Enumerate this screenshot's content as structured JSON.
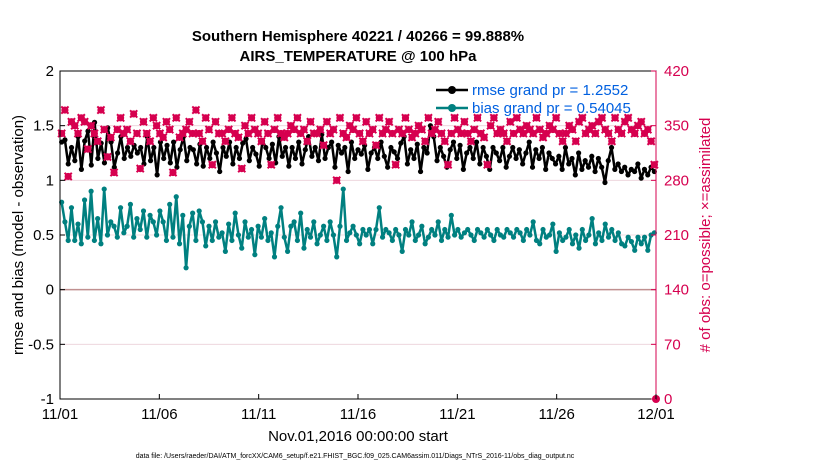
{
  "chart_data": {
    "type": "line",
    "title_line1": "Southern Hemisphere 40221 / 40266 = 99.888%",
    "title_line2": "AIRS_TEMPERATURE @ 100 hPa",
    "xlabel": "Nov.01,2016 00:00:00 start",
    "ylabel": "rmse and bias (model - observation)",
    "ylabel_right": "# of obs: o=possible; ×=assimilated",
    "x_tick_labels": [
      "11/01",
      "11/06",
      "11/11",
      "11/16",
      "11/21",
      "11/26",
      "12/01"
    ],
    "xlim": [
      0,
      30
    ],
    "ylim": [
      -1,
      2
    ],
    "y_ticks": [
      "-1",
      "-0.5",
      "0",
      "0.5",
      "1",
      "1.5",
      "2"
    ],
    "ylim_right": [
      0,
      420
    ],
    "y_ticks_right": [
      "0",
      "70",
      "140",
      "210",
      "280",
      "350",
      "420"
    ],
    "zero_line": 0,
    "grid": "horizontal",
    "legend_position": "top-right",
    "series": [
      {
        "name": "rmse grand pr = 1.2552",
        "color": "#000000",
        "marker": "circle",
        "axis": "left",
        "values": [
          1.35,
          1.37,
          1.15,
          1.3,
          1.18,
          1.4,
          1.1,
          1.36,
          1.45,
          1.14,
          1.53,
          1.2,
          1.34,
          1.16,
          1.48,
          1.35,
          1.12,
          1.25,
          1.4,
          1.2,
          1.3,
          1.22,
          1.32,
          1.25,
          1.3,
          1.15,
          1.4,
          1.18,
          1.3,
          1.05,
          1.35,
          1.2,
          1.32,
          1.16,
          1.35,
          1.12,
          1.28,
          1.4,
          1.18,
          1.3,
          1.28,
          1.15,
          1.33,
          1.13,
          1.3,
          1.2,
          1.35,
          1.25,
          1.08,
          1.3,
          1.22,
          1.35,
          1.15,
          1.3,
          1.2,
          1.34,
          1.38,
          1.18,
          1.3,
          1.24,
          1.13,
          1.36,
          1.3,
          1.2,
          1.33,
          1.16,
          1.4,
          1.22,
          1.3,
          1.13,
          1.3,
          1.2,
          1.35,
          1.15,
          1.28,
          1.4,
          1.22,
          1.3,
          1.18,
          1.42,
          1.2,
          1.3,
          1.35,
          1.12,
          1.32,
          1.25,
          1.3,
          1.08,
          1.35,
          1.2,
          1.28,
          1.24,
          1.32,
          1.1,
          1.25,
          1.3,
          1.2,
          1.35,
          1.22,
          1.12,
          1.3,
          1.26,
          1.2,
          1.34,
          1.4,
          1.15,
          1.28,
          1.2,
          1.33,
          1.08,
          1.3,
          1.25,
          1.5,
          1.4,
          1.18,
          1.3,
          1.22,
          1.12,
          1.28,
          1.35,
          1.2,
          1.32,
          1.1,
          1.25,
          1.3,
          1.2,
          1.35,
          1.15,
          1.3,
          1.22,
          1.1,
          1.3,
          1.25,
          1.18,
          1.3,
          1.12,
          1.22,
          1.3,
          1.2,
          1.28,
          1.15,
          1.25,
          1.35,
          1.12,
          1.28,
          1.2,
          1.3,
          1.1,
          1.25,
          1.2,
          1.15,
          1.22,
          1.1,
          1.3,
          1.15,
          1.2,
          1.05,
          1.25,
          1.1,
          1.18,
          1.12,
          1.22,
          1.08,
          1.2,
          1.12,
          0.98,
          1.18,
          1.3,
          1.1,
          1.15,
          1.08,
          1.12,
          1.05,
          1.1,
          1.08,
          1.15,
          1.02,
          1.1,
          1.05,
          1.12,
          1.08
        ]
      },
      {
        "name": "bias grand pr = 0.54045",
        "color": "#008080",
        "marker": "circle",
        "axis": "left",
        "values": [
          0.8,
          0.62,
          0.45,
          0.75,
          0.45,
          0.6,
          0.42,
          0.82,
          0.48,
          0.9,
          0.45,
          0.65,
          0.42,
          0.92,
          0.5,
          0.62,
          0.58,
          0.48,
          0.75,
          0.52,
          0.58,
          0.78,
          0.48,
          0.65,
          0.55,
          0.72,
          0.48,
          0.68,
          0.62,
          0.5,
          0.72,
          0.62,
          0.45,
          0.78,
          0.48,
          0.85,
          0.42,
          0.68,
          0.2,
          0.58,
          0.7,
          0.45,
          0.72,
          0.62,
          0.4,
          0.58,
          0.45,
          0.62,
          0.48,
          0.52,
          0.35,
          0.6,
          0.45,
          0.7,
          0.5,
          0.38,
          0.62,
          0.48,
          0.55,
          0.32,
          0.58,
          0.48,
          0.65,
          0.45,
          0.52,
          0.3,
          0.58,
          0.75,
          0.48,
          0.35,
          0.58,
          0.62,
          0.45,
          0.7,
          0.38,
          0.55,
          0.48,
          0.62,
          0.42,
          0.5,
          0.58,
          0.45,
          0.62,
          0.5,
          0.3,
          0.58,
          0.92,
          0.45,
          0.52,
          0.58,
          0.5,
          0.42,
          0.55,
          0.5,
          0.55,
          0.42,
          0.55,
          0.75,
          0.48,
          0.55,
          0.52,
          0.45,
          0.55,
          0.5,
          0.35,
          0.55,
          0.5,
          0.62,
          0.45,
          0.5,
          0.58,
          0.42,
          0.48,
          0.55,
          0.5,
          0.62,
          0.45,
          0.55,
          0.48,
          0.68,
          0.5,
          0.55,
          0.48,
          0.52,
          0.55,
          0.5,
          0.45,
          0.55,
          0.52,
          0.48,
          0.55,
          0.5,
          0.45,
          0.55,
          0.5,
          0.48,
          0.55,
          0.52,
          0.48,
          0.55,
          0.52,
          0.45,
          0.55,
          0.5,
          0.62,
          0.45,
          0.42,
          0.55,
          0.48,
          0.5,
          0.6,
          0.35,
          0.52,
          0.45,
          0.48,
          0.55,
          0.42,
          0.5,
          0.38,
          0.55,
          0.45,
          0.5,
          0.65,
          0.42,
          0.52,
          0.45,
          0.6,
          0.48,
          0.55,
          0.45,
          0.52,
          0.42,
          0.4,
          0.48,
          0.44,
          0.36,
          0.48,
          0.42,
          0.48,
          0.36,
          0.5,
          0.52
        ]
      },
      {
        "name": "obs possible",
        "color": "#d6004f",
        "marker": "circle",
        "axis": "right",
        "values": [
          340,
          370,
          285,
          355,
          350,
          340,
          360,
          355,
          320,
          350,
          340,
          330,
          370,
          345,
          310,
          335,
          290,
          345,
          360,
          340,
          345,
          330,
          365,
          340,
          295,
          355,
          340,
          330,
          360,
          350,
          340,
          335,
          355,
          345,
          290,
          360,
          335,
          340,
          345,
          355,
          340,
          370,
          340,
          330,
          360,
          345,
          300,
          355,
          340,
          340,
          330,
          345,
          360,
          340,
          335,
          295,
          350,
          340,
          360,
          345,
          340,
          330,
          355,
          340,
          300,
          345,
          360,
          340,
          335,
          340,
          350,
          345,
          360,
          340,
          345,
          330,
          355,
          340,
          340,
          345,
          325,
          355,
          340,
          345,
          280,
          360,
          340,
          335,
          350,
          345,
          360,
          340,
          330,
          355,
          340,
          345,
          325,
          360,
          340,
          345,
          355,
          340,
          300,
          345,
          340,
          360,
          345,
          335,
          340,
          350,
          345,
          330,
          360,
          340,
          345,
          355,
          340,
          330,
          300,
          340,
          360,
          345,
          340,
          355,
          340,
          330,
          345,
          360,
          340,
          335,
          300,
          350,
          360,
          340,
          345,
          340,
          330,
          355,
          340,
          360,
          345,
          340,
          350,
          345,
          340,
          360,
          345,
          335,
          340,
          350,
          345,
          360,
          340,
          330,
          340,
          350,
          345,
          330,
          355,
          360,
          340,
          345,
          350,
          340,
          355,
          360,
          345,
          340,
          330,
          360,
          345,
          340,
          355,
          360,
          345,
          340,
          350,
          355,
          340,
          345,
          330,
          300
        ]
      },
      {
        "name": "obs assimilated",
        "color": "#d6004f",
        "marker": "x",
        "axis": "right",
        "values": [
          340,
          370,
          285,
          355,
          350,
          340,
          360,
          355,
          320,
          350,
          340,
          330,
          370,
          345,
          310,
          335,
          290,
          345,
          360,
          340,
          345,
          330,
          365,
          340,
          295,
          355,
          340,
          330,
          360,
          350,
          340,
          335,
          355,
          345,
          290,
          360,
          335,
          340,
          345,
          355,
          340,
          370,
          340,
          330,
          360,
          345,
          300,
          355,
          340,
          340,
          330,
          345,
          360,
          340,
          335,
          295,
          350,
          340,
          360,
          345,
          340,
          330,
          355,
          340,
          300,
          345,
          360,
          340,
          335,
          340,
          350,
          345,
          360,
          340,
          345,
          330,
          355,
          340,
          340,
          345,
          325,
          355,
          340,
          345,
          280,
          360,
          340,
          335,
          350,
          345,
          360,
          340,
          330,
          355,
          340,
          345,
          325,
          360,
          340,
          345,
          355,
          340,
          300,
          345,
          340,
          360,
          345,
          335,
          340,
          350,
          345,
          330,
          360,
          340,
          345,
          355,
          340,
          330,
          300,
          340,
          360,
          345,
          340,
          355,
          340,
          330,
          345,
          360,
          340,
          335,
          300,
          350,
          360,
          340,
          345,
          340,
          330,
          355,
          340,
          360,
          345,
          340,
          350,
          345,
          340,
          360,
          345,
          335,
          340,
          350,
          345,
          360,
          340,
          330,
          340,
          350,
          345,
          330,
          355,
          360,
          340,
          345,
          350,
          340,
          355,
          360,
          345,
          340,
          330,
          360,
          345,
          340,
          355,
          360,
          345,
          340,
          350,
          355,
          340,
          345,
          330,
          300
        ]
      }
    ],
    "footnote": "data file: /Users/raeder/DAI/ATM_forcXX/CAM6_setup/f.e21.FHIST_BGC.f09_025.CAM6assim.011/Diags_NTrS_2016-11/obs_diag_output.nc"
  },
  "colors": {
    "rmse": "#000000",
    "bias": "#008080",
    "obs": "#d6004f",
    "legend_text": "#0060e0",
    "zero_line": "#c09090"
  }
}
